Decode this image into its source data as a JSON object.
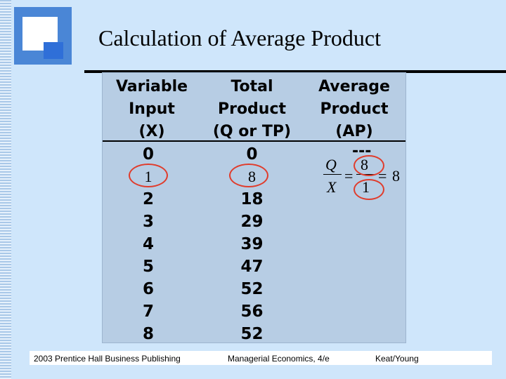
{
  "title": "Calculation of Average Product",
  "table": {
    "headers": [
      [
        "Variable",
        "Input",
        "(X)"
      ],
      [
        "Total",
        "Product",
        "(Q or TP)"
      ],
      [
        "Average",
        "Product",
        "(AP)"
      ]
    ],
    "input_x": [
      "0",
      "1",
      "2",
      "3",
      "4",
      "5",
      "6",
      "7",
      "8"
    ],
    "total_product": [
      "0",
      "8",
      "18",
      "29",
      "39",
      "47",
      "52",
      "56",
      "52"
    ],
    "average_product_first": "---"
  },
  "formula": {
    "numerator_symbol": "Q",
    "denominator_symbol": "X",
    "equals": "=",
    "numerator_value": "8",
    "denominator_value": "1",
    "result": "8"
  },
  "footer": {
    "left": "2003 Prentice Hall Business Publishing",
    "center": "Managerial Economics, 4/e",
    "right": "Keat/Young"
  },
  "colors": {
    "background": "#cfe6fb",
    "table": "#b7cde4",
    "highlight_oval": "#e03c2c",
    "logo": "#4a86d6"
  }
}
